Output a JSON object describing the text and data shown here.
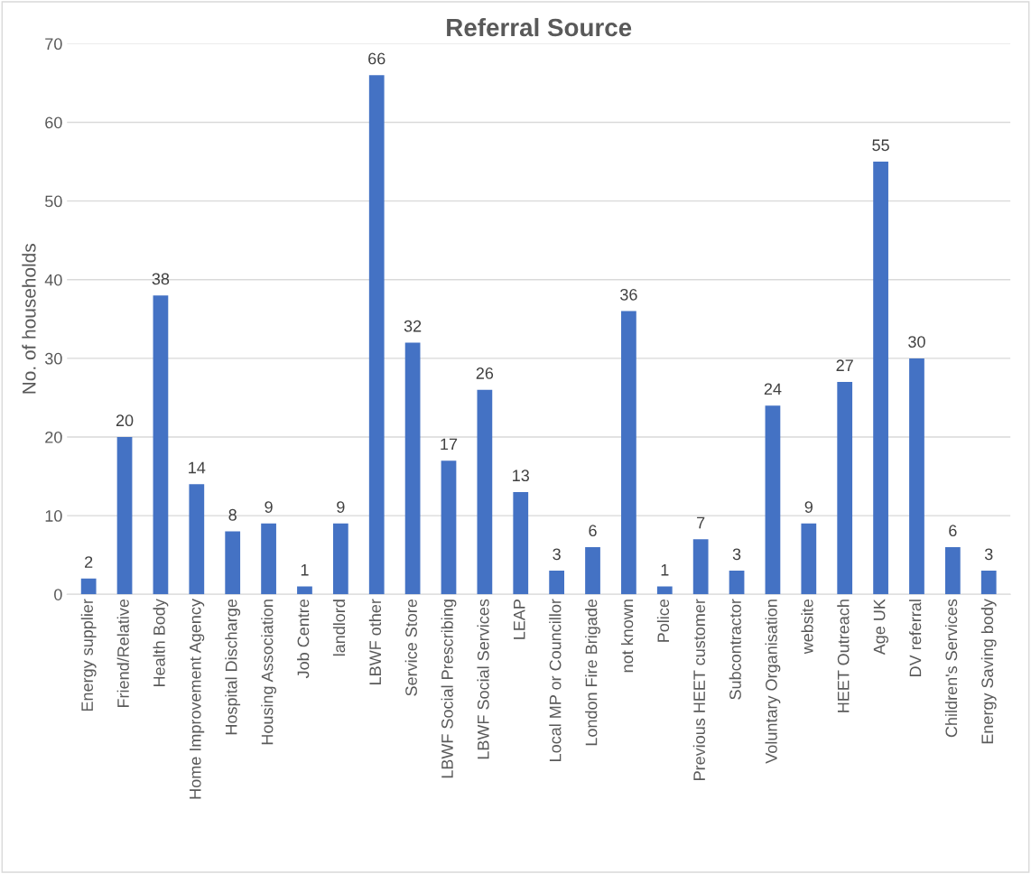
{
  "chart_data": {
    "type": "bar",
    "title": "Referral Source",
    "ylabel": "No. of households",
    "categories": [
      "Energy supplier",
      "Friend/Relative",
      "Health Body",
      "Home Improvement Agency",
      "Hospital Discharge",
      "Housing Association",
      "Job Centre",
      "landlord",
      "LBWF other",
      "Service Store",
      "LBWF Social Prescribing",
      "LBWF Social Services",
      "LEAP",
      "Local MP or Councillor",
      "London Fire Brigade",
      "not known",
      "Police",
      "Previous HEET customer",
      "Subcontractor",
      "Voluntary Organisation",
      "website",
      "HEET Outreach",
      "Age UK",
      "DV referral",
      "Children's Services",
      "Energy Saving body"
    ],
    "values": [
      2,
      20,
      38,
      14,
      8,
      9,
      1,
      9,
      66,
      32,
      17,
      26,
      13,
      3,
      6,
      36,
      1,
      7,
      3,
      24,
      9,
      27,
      55,
      30,
      6,
      3
    ],
    "color": "#4472c4",
    "ylim": [
      0,
      70
    ],
    "yticks": [
      0,
      10,
      20,
      30,
      40,
      50,
      60,
      70
    ],
    "grid": "y",
    "data_labels": true
  }
}
